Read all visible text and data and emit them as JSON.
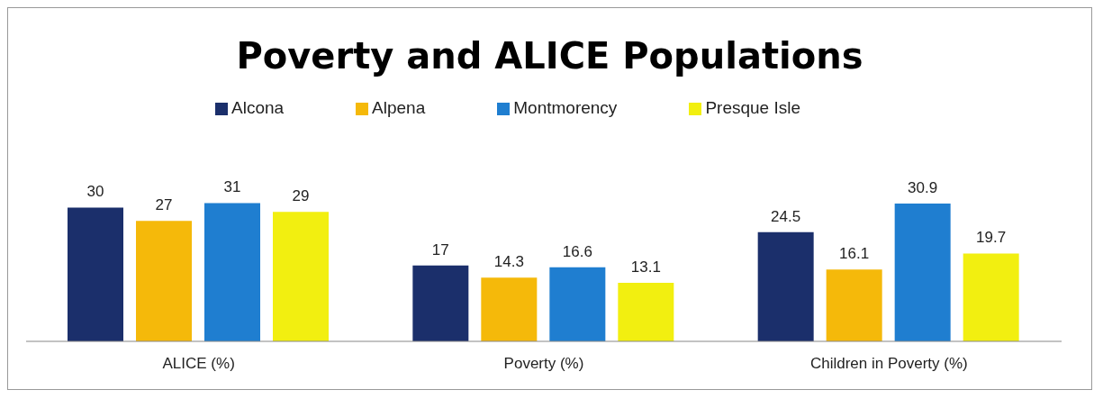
{
  "chart_data": {
    "type": "bar",
    "title": "Poverty and ALICE Populations",
    "categories": [
      "ALICE (%)",
      "Poverty (%)",
      "Children in Poverty (%)"
    ],
    "series": [
      {
        "name": "Alcona",
        "color": "#1b2f6b",
        "values": [
          30,
          17,
          24.5
        ]
      },
      {
        "name": "Alpena",
        "color": "#f5b90a",
        "values": [
          27,
          14.3,
          16.1
        ]
      },
      {
        "name": "Montmorency",
        "color": "#1f7ed0",
        "values": [
          31,
          16.6,
          30.9
        ]
      },
      {
        "name": "Presque Isle",
        "color": "#f2ef10",
        "values": [
          29,
          13.1,
          19.7
        ]
      }
    ],
    "data_labels": true,
    "relative": false,
    "legend": "top",
    "grid": false
  }
}
